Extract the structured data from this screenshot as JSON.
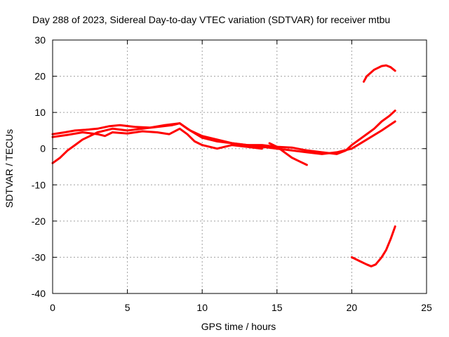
{
  "chart_data": {
    "type": "line",
    "title": "Day 288 of 2023, Sidereal Day-to-day VTEC variation (SDTVAR) for receiver mtbu",
    "xlabel": "GPS time / hours",
    "ylabel": "SDTVAR / TECUs",
    "xlim": [
      0,
      25
    ],
    "ylim": [
      -40,
      30
    ],
    "xticks": [
      0,
      5,
      10,
      15,
      20,
      25
    ],
    "yticks": [
      -40,
      -30,
      -20,
      -10,
      0,
      10,
      20,
      30
    ],
    "xtick_labels": [
      "0",
      "5",
      "10",
      "15",
      "20",
      "25"
    ],
    "ytick_labels": [
      "-40",
      "-30",
      "-20",
      "-10",
      "0",
      "10",
      "20",
      "30"
    ],
    "grid": true,
    "colors": {
      "series": "#ff0000",
      "grid": "#a0a0a0",
      "axis": "#000000"
    },
    "series": [
      {
        "name": "track-1",
        "x": [
          0,
          0.8,
          1.5,
          2.2,
          3,
          3.8,
          4.5,
          5.5,
          6.5,
          7.5,
          8.5,
          9.2,
          10,
          11,
          12,
          13,
          14,
          15,
          16,
          17,
          18,
          19,
          19.6,
          20,
          20.5,
          21,
          21.5,
          22,
          22.5,
          22.9
        ],
        "y": [
          4,
          4.5,
          5,
          5.2,
          5.5,
          6.2,
          6.5,
          6,
          5.8,
          6.5,
          7,
          5,
          3.5,
          2.5,
          1.5,
          1,
          1,
          0.5,
          0.3,
          -0.5,
          -1,
          -1.5,
          -0.5,
          1,
          2.5,
          4,
          5.5,
          7.5,
          9,
          10.5
        ]
      },
      {
        "name": "track-2",
        "x": [
          0,
          0.5,
          1,
          1.5,
          2,
          2.5,
          3,
          3.5,
          4,
          5,
          6,
          7,
          8,
          8.5,
          9,
          10,
          11,
          12,
          13,
          14,
          15,
          16,
          17,
          18,
          19,
          20,
          21,
          22,
          22.9
        ],
        "y": [
          -4,
          -2.5,
          -0.5,
          1,
          2.5,
          3.5,
          4.5,
          5,
          5.5,
          5,
          5.5,
          6,
          6.5,
          7,
          5.5,
          3,
          2,
          1.5,
          1,
          0.5,
          0,
          -0.5,
          -1,
          -1.5,
          -1,
          0,
          2.5,
          5,
          7.5
        ]
      },
      {
        "name": "track-3",
        "x": [
          0,
          1,
          2,
          3,
          3.5,
          4,
          5,
          6,
          7,
          7.8,
          8.5,
          9,
          9.5,
          10,
          11,
          12,
          13,
          14
        ],
        "y": [
          3.2,
          3.8,
          4.5,
          4,
          3.5,
          4.5,
          4.2,
          4.8,
          4.5,
          4,
          5.5,
          4,
          2,
          1,
          0,
          1,
          0.5,
          0
        ]
      },
      {
        "name": "track-4",
        "x": [
          14.5,
          15,
          15.5,
          16,
          16.5,
          17
        ],
        "y": [
          1.5,
          0.5,
          -1,
          -2.5,
          -3.5,
          -4.5
        ]
      },
      {
        "name": "track-5",
        "x": [
          20.8,
          21,
          21.5,
          22,
          22.3,
          22.6,
          22.9
        ],
        "y": [
          18.5,
          20,
          21.8,
          22.8,
          23,
          22.5,
          21.5
        ]
      },
      {
        "name": "track-6",
        "x": [
          20,
          20.5,
          21,
          21.3,
          21.6,
          22,
          22.3,
          22.6,
          22.9
        ],
        "y": [
          -30,
          -31,
          -32,
          -32.5,
          -32,
          -30,
          -28,
          -25,
          -21.5
        ]
      }
    ]
  }
}
